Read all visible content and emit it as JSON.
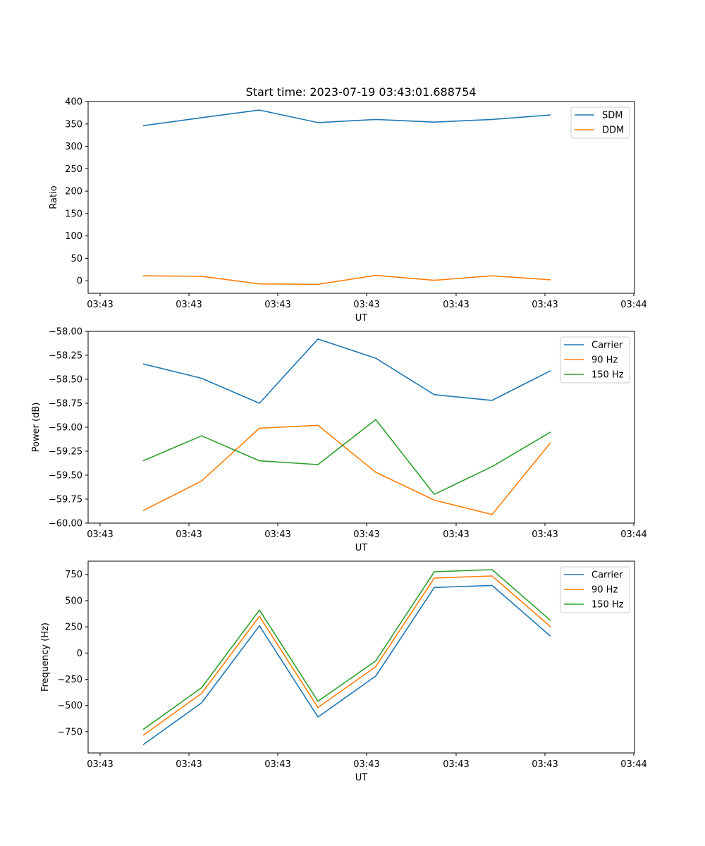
{
  "figure_title": "Start time: 2023-07-19 03:43:01.688754",
  "chart_data": [
    {
      "type": "line",
      "title": "Start time: 2023-07-19 03:43:01.688754",
      "xlabel": "UT",
      "ylabel": "Ratio",
      "x_tick_labels": [
        "03:43",
        "03:43",
        "03:43",
        "03:43",
        "03:43",
        "03:43",
        "03:44"
      ],
      "y_ticks": [
        0,
        50,
        100,
        150,
        200,
        250,
        300,
        350,
        400
      ],
      "y_tick_labels": [
        "0",
        "50",
        "100",
        "150",
        "200",
        "250",
        "300",
        "350",
        "400"
      ],
      "ylim": [
        -28,
        400
      ],
      "legend": "top-right",
      "series": [
        {
          "name": "SDM",
          "color": "#1f77b4",
          "values": [
            346,
            364,
            381,
            353,
            360,
            354,
            360,
            370
          ]
        },
        {
          "name": "DDM",
          "color": "#ff7f0e",
          "values": [
            11,
            10,
            -7,
            -8,
            12,
            1,
            11,
            2
          ]
        }
      ]
    },
    {
      "type": "line",
      "title": "",
      "xlabel": "UT",
      "ylabel": "Power (dB)",
      "x_tick_labels": [
        "03:43",
        "03:43",
        "03:43",
        "03:43",
        "03:43",
        "03:43",
        "03:44"
      ],
      "y_ticks": [
        -58.0,
        -58.25,
        -58.5,
        -58.75,
        -59.0,
        -59.25,
        -59.5,
        -59.75,
        -60.0
      ],
      "y_tick_labels": [
        "−58.00",
        "−58.25",
        "−58.50",
        "−58.75",
        "−59.00",
        "−59.25",
        "−59.50",
        "−59.75",
        "−60.00"
      ],
      "ylim": [
        -60.0,
        -58.0
      ],
      "legend": "top-right",
      "series": [
        {
          "name": "Carrier",
          "color": "#1f77b4",
          "values": [
            -58.34,
            -58.49,
            -58.75,
            -58.08,
            -58.28,
            -58.66,
            -58.72,
            -58.41
          ]
        },
        {
          "name": "90 Hz",
          "color": "#ff7f0e",
          "values": [
            -59.87,
            -59.56,
            -59.01,
            -58.98,
            -59.47,
            -59.76,
            -59.91,
            -59.16
          ]
        },
        {
          "name": "150 Hz",
          "color": "#2ca02c",
          "values": [
            -59.35,
            -59.09,
            -59.35,
            -59.39,
            -58.92,
            -59.7,
            -59.41,
            -59.05
          ]
        }
      ]
    },
    {
      "type": "line",
      "title": "",
      "xlabel": "UT",
      "ylabel": "Frequency (Hz)",
      "x_tick_labels": [
        "03:43",
        "03:43",
        "03:43",
        "03:43",
        "03:43",
        "03:43",
        "03:44"
      ],
      "y_ticks": [
        -750,
        -500,
        -250,
        0,
        250,
        500,
        750
      ],
      "y_tick_labels": [
        "−750",
        "−500",
        "−250",
        "0",
        "250",
        "500",
        "750"
      ],
      "ylim": [
        -953,
        876
      ],
      "legend": "top-right",
      "series": [
        {
          "name": "Carrier",
          "color": "#1f77b4",
          "values": [
            -875,
            -475,
            260,
            -610,
            -220,
            625,
            645,
            160
          ]
        },
        {
          "name": "90 Hz",
          "color": "#ff7f0e",
          "values": [
            -785,
            -385,
            350,
            -520,
            -130,
            715,
            735,
            250
          ]
        },
        {
          "name": "150 Hz",
          "color": "#2ca02c",
          "values": [
            -730,
            -330,
            410,
            -460,
            -75,
            775,
            795,
            310
          ]
        }
      ]
    }
  ]
}
